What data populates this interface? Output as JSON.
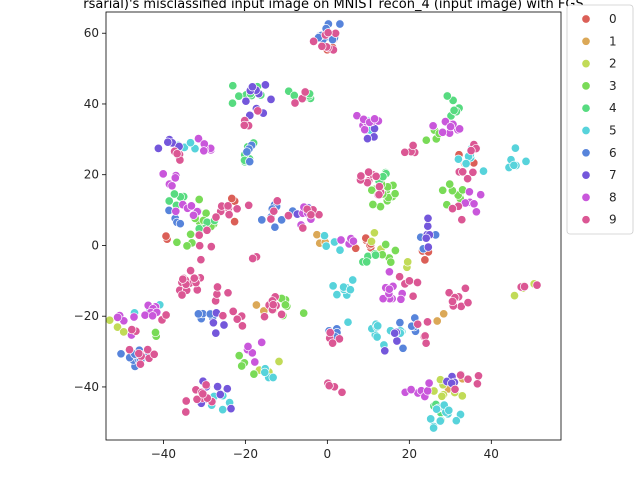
{
  "chart_data": {
    "type": "scatter",
    "title": "rsarial)'s misclassified input image on MNIST recon_4 (input image) with FGS",
    "xlabel": "",
    "ylabel": "",
    "xlim": [
      -54,
      57
    ],
    "ylim": [
      -55,
      66
    ],
    "x_ticks": [
      -40,
      -20,
      0,
      20,
      40
    ],
    "y_ticks": [
      -40,
      -20,
      0,
      20,
      40,
      60
    ],
    "grid": false,
    "legend_position": "outside-right-top",
    "legend": [
      "0",
      "1",
      "2",
      "3",
      "4",
      "5",
      "6",
      "7",
      "8",
      "9"
    ],
    "series": [
      {
        "name": "0",
        "color": "#db5f57",
        "clusters": [
          [
            10,
            0,
            1.5,
            6
          ],
          [
            25,
            -2,
            1.5,
            4
          ],
          [
            -40,
            2,
            1,
            2
          ],
          [
            0,
            57,
            1.5,
            4
          ],
          [
            -22,
            12,
            2,
            3
          ],
          [
            34,
            26,
            1.5,
            3
          ]
        ]
      },
      {
        "name": "1",
        "color": "#dba857",
        "clusters": [
          [
            -14,
            -18,
            2,
            3
          ],
          [
            -2,
            0,
            1.5,
            3
          ],
          [
            28,
            -20,
            1,
            2
          ],
          [
            32,
            -40,
            1.5,
            2
          ]
        ]
      },
      {
        "name": "2",
        "color": "#c1db57",
        "clusters": [
          [
            30,
            -41,
            2,
            8
          ],
          [
            -14,
            -35,
            1.5,
            3
          ],
          [
            48,
            -13,
            1.5,
            4
          ],
          [
            12,
            2,
            1.5,
            3
          ],
          [
            20,
            -5,
            1,
            2
          ],
          [
            -50,
            -23,
            1.5,
            3
          ]
        ]
      },
      {
        "name": "3",
        "color": "#79db57",
        "clusters": [
          [
            13,
            14,
            2,
            14
          ],
          [
            -30,
            8,
            2,
            8
          ],
          [
            -10,
            -18,
            2,
            6
          ],
          [
            30,
            14,
            2,
            8
          ],
          [
            -20,
            -35,
            2,
            4
          ],
          [
            16,
            -3,
            1.5,
            5
          ],
          [
            -42,
            -26,
            1,
            2
          ],
          [
            -35,
            2,
            1.5,
            4
          ],
          [
            27,
            32,
            1.5,
            5
          ]
        ]
      },
      {
        "name": "4",
        "color": "#57db80",
        "clusters": [
          [
            -20,
            43,
            2,
            8
          ],
          [
            -6,
            42,
            1.5,
            6
          ],
          [
            -21,
            26,
            2,
            6
          ],
          [
            30,
            40,
            2,
            6
          ],
          [
            -37,
            13,
            1.5,
            5
          ],
          [
            10,
            -3,
            1.5,
            5
          ],
          [
            14,
            20,
            1.5,
            4
          ],
          [
            28,
            -47,
            2,
            5
          ],
          [
            -28,
            6,
            1.5,
            4
          ]
        ]
      },
      {
        "name": "5",
        "color": "#57d3db",
        "clusters": [
          [
            4,
            -12,
            1.5,
            8
          ],
          [
            12,
            -24,
            2,
            10
          ],
          [
            28,
            -47,
            2,
            12
          ],
          [
            34,
            24,
            1.5,
            8
          ],
          [
            46,
            23,
            2,
            6
          ],
          [
            2,
            1,
            1.5,
            4
          ],
          [
            -35,
            28,
            1.5,
            4
          ],
          [
            10,
            34,
            1.5,
            4
          ],
          [
            -44,
            -18,
            1.5,
            4
          ],
          [
            -28,
            -44,
            1.5,
            6
          ],
          [
            18,
            -25,
            1,
            3
          ],
          [
            -14,
            -36,
            1.5,
            4
          ]
        ]
      },
      {
        "name": "6",
        "color": "#5784db",
        "clusters": [
          [
            0,
            60,
            1.5,
            10
          ],
          [
            -46,
            -31,
            1.5,
            10
          ],
          [
            -12,
            8,
            2,
            8
          ],
          [
            20,
            -24,
            1.5,
            6
          ],
          [
            2,
            -24,
            1.5,
            4
          ],
          [
            -30,
            -20,
            1.5,
            5
          ],
          [
            -36,
            8,
            1.5,
            4
          ],
          [
            -19,
            27,
            1.5,
            4
          ],
          [
            24,
            3,
            1.5,
            3
          ]
        ]
      },
      {
        "name": "7",
        "color": "#7457db",
        "clusters": [
          [
            -17,
            41,
            2,
            10
          ],
          [
            -38,
            28,
            2,
            6
          ],
          [
            24,
            3,
            2,
            6
          ],
          [
            -28,
            -22,
            1.5,
            4
          ],
          [
            -28,
            -41,
            2,
            8
          ],
          [
            30,
            -40,
            1.5,
            5
          ],
          [
            17,
            -27,
            1.5,
            4
          ],
          [
            12,
            32,
            1.5,
            3
          ],
          [
            -6,
            9,
            1.5,
            3
          ]
        ]
      },
      {
        "name": "8",
        "color": "#c957db",
        "clusters": [
          [
            -44,
            -19,
            2,
            8
          ],
          [
            10,
            35,
            2,
            10
          ],
          [
            30,
            34,
            2,
            10
          ],
          [
            16,
            -14,
            2,
            10
          ],
          [
            -18,
            -30,
            2,
            5
          ],
          [
            35,
            12,
            1.5,
            6
          ],
          [
            -30,
            28,
            1.5,
            6
          ],
          [
            4,
            0,
            1.5,
            4
          ],
          [
            -5,
            8,
            1.5,
            6
          ],
          [
            -38,
            18,
            1.5,
            5
          ],
          [
            22,
            -42,
            2,
            8
          ],
          [
            -50,
            -23,
            1.5,
            4
          ],
          [
            -33,
            11,
            1.5,
            6
          ]
        ]
      },
      {
        "name": "9",
        "color": "#db5794",
        "clusters": [
          [
            -34,
            -12,
            2,
            16
          ],
          [
            -30,
            -42,
            2,
            10
          ],
          [
            -24,
            10,
            2,
            8
          ],
          [
            -44,
            -31,
            1.5,
            8
          ],
          [
            32,
            -15,
            1.5,
            8
          ],
          [
            10,
            20,
            1.5,
            6
          ],
          [
            0,
            58,
            1.5,
            8
          ],
          [
            -6,
            41,
            1,
            3
          ],
          [
            -12,
            -16,
            2,
            8
          ],
          [
            -4,
            8,
            1.5,
            6
          ],
          [
            34,
            -38,
            2,
            6
          ],
          [
            12,
            15,
            1.5,
            4
          ],
          [
            24,
            -24,
            1.5,
            5
          ],
          [
            -30,
            2,
            1.5,
            5
          ],
          [
            -22,
            -20,
            1.5,
            5
          ],
          [
            0,
            -39,
            1.5,
            4
          ],
          [
            2,
            -28,
            1.5,
            4
          ],
          [
            48,
            -12,
            1,
            3
          ],
          [
            -38,
            25,
            1.5,
            4
          ],
          [
            -26,
            -14,
            1.5,
            4
          ],
          [
            20,
            27,
            1.5,
            4
          ],
          [
            -12,
            10,
            1.5,
            4
          ],
          [
            -18,
            -2,
            1,
            2
          ],
          [
            20,
            -11,
            1.5,
            5
          ],
          [
            32,
            20,
            1.5,
            4
          ],
          [
            36,
            28,
            1,
            3
          ],
          [
            -20,
            35,
            1.5,
            4
          ],
          [
            32,
            9,
            1.5,
            3
          ],
          [
            -40,
            -20,
            1,
            2
          ],
          [
            -48,
            -24,
            1,
            2
          ],
          [
            8,
            18,
            1,
            2
          ]
        ]
      }
    ]
  }
}
